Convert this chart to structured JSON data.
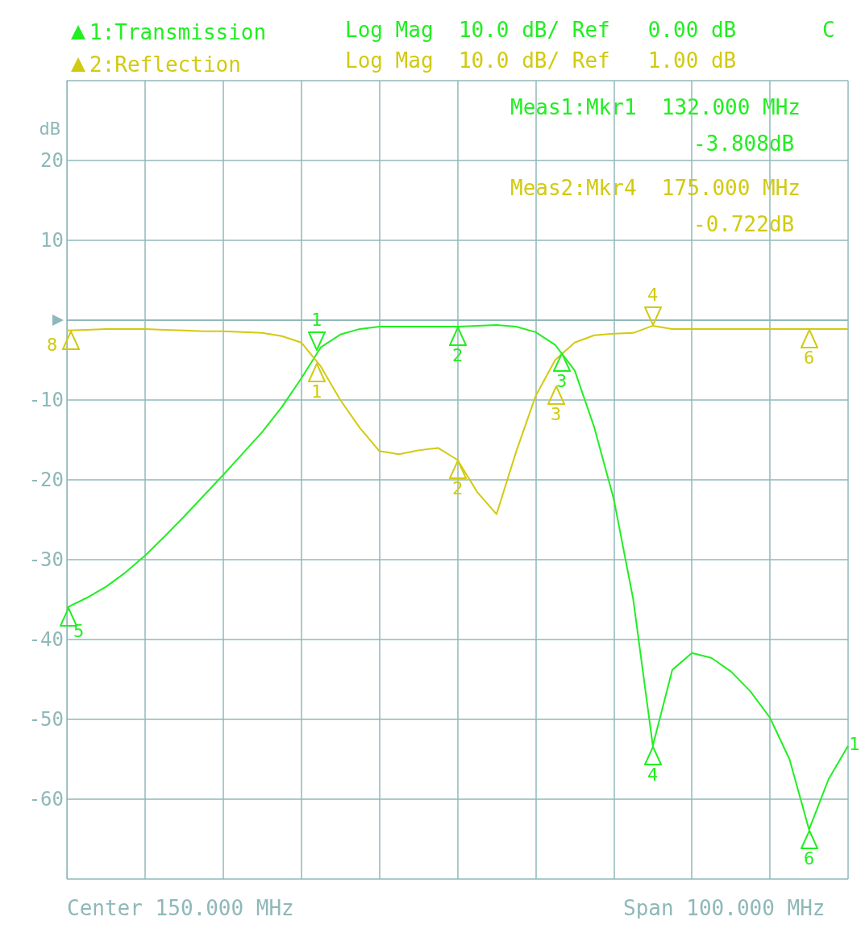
{
  "chart_data": {
    "type": "line",
    "ylabel": "dB",
    "legend": "top left",
    "grid": true,
    "marker": "none",
    "line_style": "solid",
    "tick_labels": "y",
    "ref_lines": [
      {
        "axis": "y",
        "value": 0,
        "color": "#8fb8b8"
      }
    ],
    "categories": [
      null,
      null,
      null,
      null,
      null,
      null,
      null,
      null,
      null,
      null,
      null,
      null,
      null,
      null,
      null,
      null,
      null,
      null,
      null,
      null,
      null,
      null,
      null,
      null,
      null,
      null,
      null,
      null,
      null,
      null,
      null,
      null,
      null,
      null,
      null,
      null,
      null,
      null,
      null,
      null,
      null
    ],
    "ylim": [
      -70,
      30
    ],
    "yticks": [
      {
        "value": -70,
        "label": null
      },
      -60,
      -50,
      -40,
      -30,
      -20,
      -10,
      {
        "value": 0,
        "label": null
      },
      10,
      20,
      {
        "value": 30,
        "label": null
      }
    ],
    "series": [
      {
        "name": "1:Transmission",
        "color": "#22ee22",
        "values": [
          -36,
          -34.8,
          -33.4,
          -31.6,
          -29.5,
          -27.1,
          -24.6,
          -22,
          -19.4,
          -16.7,
          -14,
          -10.9,
          -7.3,
          -3.4,
          -1.8,
          -1.1,
          -0.8,
          -0.8,
          -0.8,
          -0.8,
          -0.8,
          -0.7,
          -0.6,
          -0.8,
          -1.5,
          -3.1,
          -6.3,
          -13.4,
          -22.4,
          -35,
          -53.3,
          -43.8,
          -41.7,
          -42.3,
          -44,
          -46.5,
          -49.8,
          -55,
          -63.8,
          -57.5,
          -53.3
        ]
      },
      {
        "name": "2:Reflection",
        "color": "#d2ca10",
        "values": [
          -1.3,
          -1.2,
          -1.1,
          -1.1,
          -1.1,
          -1.2,
          -1.3,
          -1.4,
          -1.4,
          -1.5,
          -1.6,
          -2,
          -2.8,
          -5.8,
          -10,
          -13.5,
          -16.4,
          -16.8,
          -16.3,
          -16,
          -17.5,
          -21.5,
          -24.3,
          -16.5,
          -9.5,
          -5,
          -2.8,
          -1.9,
          -1.7,
          -1.6,
          -0.7,
          -1.1,
          -1.1,
          -1.1,
          -1.1,
          -1.1,
          -1.1,
          -1.1,
          -1.1,
          -1.1,
          -1.1
        ]
      }
    ],
    "annotations": [
      "Log Mag  10.0 dB/ Ref   0.00 dB",
      "C",
      "Log Mag  10.0 dB/ Ref   1.00 dB",
      "Meas1:Mkr1  132.000 MHz",
      "-3.808dB",
      "Meas2:Mkr4  175.000 MHz",
      "-0.722dB",
      "Center 150.000 MHz",
      "Span 100.000 MHz",
      "1",
      "2",
      "3",
      "4",
      "5",
      "6",
      "1",
      "1",
      "2",
      "3",
      "4",
      "6",
      "8"
    ]
  }
}
